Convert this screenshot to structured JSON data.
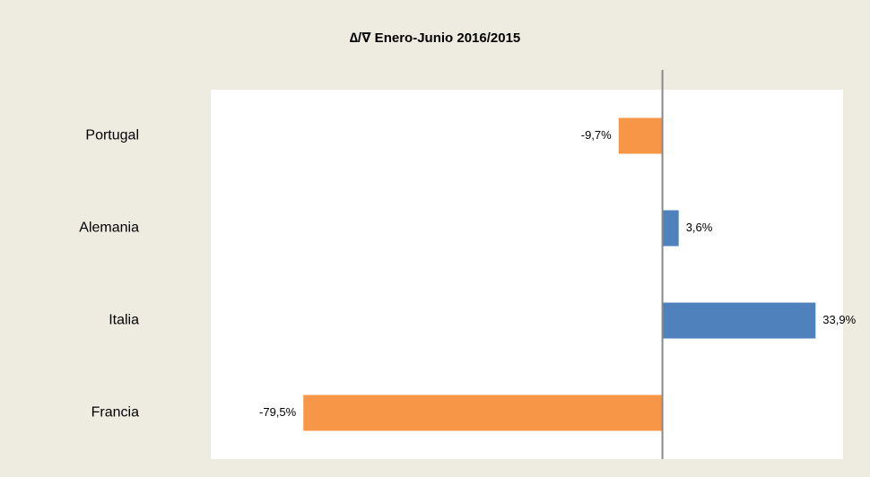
{
  "chart_data": {
    "type": "bar",
    "orientation": "horizontal",
    "title": "∆/∇ Enero-Junio 2016/2015",
    "categories": [
      "Portugal",
      "Alemania",
      "Italia",
      "Francia"
    ],
    "values": [
      -9.7,
      3.6,
      33.9,
      -79.5
    ],
    "value_labels": [
      "-9,7%",
      "3,6%",
      "33,9%",
      "-79,5%"
    ],
    "colors": [
      "#f79646",
      "#4f81bd",
      "#4f81bd",
      "#f79646"
    ],
    "xlim": [
      -100,
      40
    ]
  }
}
